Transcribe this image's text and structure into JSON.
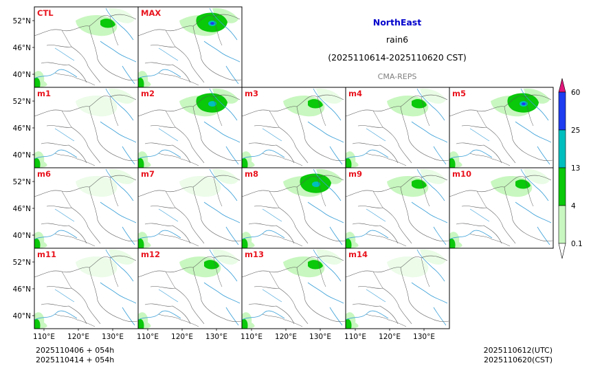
{
  "header": {
    "region": "NorthEast",
    "variable": "rain6",
    "period": "(2025110614-2025110620 CST)",
    "source": "CMA-REPS"
  },
  "colors": {
    "title": "#0000cc",
    "label": "#e8141e",
    "source": "#7f7f7f",
    "rain_0_1": "#c8f7bf",
    "rain_4": "#0ac80a",
    "rain_13": "#00bebe",
    "rain_25": "#1e3cf0",
    "rain_60": "#e0167a",
    "rivers": "#3aa0d8",
    "borders": "#555555"
  },
  "panels": [
    {
      "label": "CTL",
      "intensity": 1
    },
    {
      "label": "MAX",
      "intensity": 3
    },
    {
      "label": "m1",
      "intensity": 0
    },
    {
      "label": "m2",
      "intensity": 2
    },
    {
      "label": "m3",
      "intensity": 1
    },
    {
      "label": "m4",
      "intensity": 1
    },
    {
      "label": "m5",
      "intensity": 3
    },
    {
      "label": "m6",
      "intensity": 0
    },
    {
      "label": "m7",
      "intensity": 0
    },
    {
      "label": "m8",
      "intensity": 2
    },
    {
      "label": "m9",
      "intensity": 1
    },
    {
      "label": "m10",
      "intensity": 1
    },
    {
      "label": "m11",
      "intensity": 0
    },
    {
      "label": "m12",
      "intensity": 1
    },
    {
      "label": "m13",
      "intensity": 1
    },
    {
      "label": "m14",
      "intensity": 0
    }
  ],
  "axes": {
    "lat_ticks": [
      "52°N",
      "46°N",
      "40°N"
    ],
    "lon_ticks": [
      "110°E",
      "120°E",
      "130°E"
    ]
  },
  "colorbar": {
    "levels": [
      "60",
      "25",
      "13",
      "4",
      "0.1"
    ]
  },
  "footer": {
    "init_line1": "2025110406  +  054h",
    "init_line2": "2025110414  +  054h",
    "valid_utc": "2025110612(UTC)",
    "valid_cst": "2025110620(CST)"
  }
}
